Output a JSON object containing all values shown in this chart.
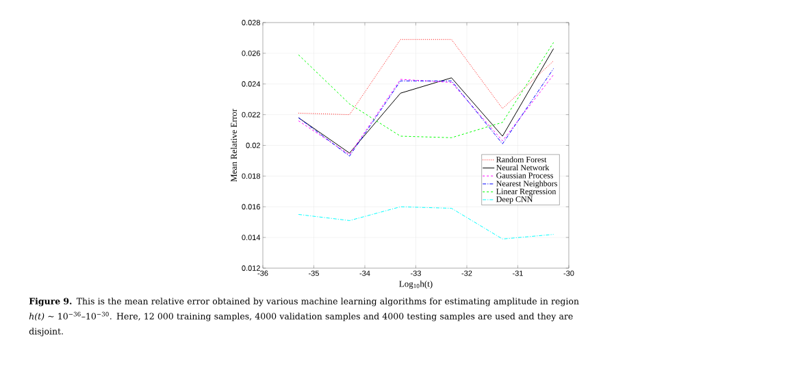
{
  "chart_data": {
    "type": "line",
    "xlabel": "Log$_{10}$h(t)",
    "ylabel": "Mean Relative Error",
    "x": [
      -35.3,
      -34.3,
      -33.3,
      -32.3,
      -31.3,
      -30.3
    ],
    "series": [
      {
        "name": "Random Forest",
        "color": "#ff0000",
        "line_style": "dotted",
        "values": [
          0.0221,
          0.022,
          0.0269,
          0.0269,
          0.0224,
          0.0255
        ]
      },
      {
        "name": "Neural Network",
        "color": "#000000",
        "line_style": "solid",
        "values": [
          0.0218,
          0.0195,
          0.0234,
          0.0244,
          0.0206,
          0.0263
        ]
      },
      {
        "name": "Gaussian Process",
        "color": "#ff00ff",
        "line_style": "dashed",
        "values": [
          0.0216,
          0.0194,
          0.0243,
          0.0241,
          0.0203,
          0.0246
        ]
      },
      {
        "name": "Nearest Neighbors",
        "color": "#0000ff",
        "line_style": "dashdot",
        "values": [
          0.0218,
          0.0193,
          0.0242,
          0.0242,
          0.0201,
          0.025
        ]
      },
      {
        "name": "Linear Regression",
        "color": "#00ff00",
        "line_style": "dashed",
        "values": [
          0.0259,
          0.0227,
          0.0206,
          0.0205,
          0.0215,
          0.0267
        ]
      },
      {
        "name": "Deep CNN",
        "color": "#00ffff",
        "line_style": "dashdot",
        "values": [
          0.0155,
          0.0151,
          0.016,
          0.0159,
          0.0139,
          0.0142
        ]
      }
    ],
    "xlim": [
      -36,
      -30
    ],
    "xticks": [
      -36,
      -35,
      -34,
      -33,
      -32,
      -31,
      -30
    ],
    "ylim": [
      0.012,
      0.028
    ],
    "yticks": [
      0.012,
      0.014,
      0.016,
      0.018,
      0.02,
      0.022,
      0.024,
      0.026,
      0.028
    ],
    "grid": true,
    "legend": "right",
    "marker": "none",
    "annotations": [
      "**Figure 9.** This is the mean relative error obtained by various machine learning algorithms for estimating amplitude in region *h(t)* ∼ 10$^{−36}$–10$^{−30}$. Here, 12 000 training samples, 4000 validation samples and 4000 testing samples are used and they are disjoint."
    ]
  }
}
